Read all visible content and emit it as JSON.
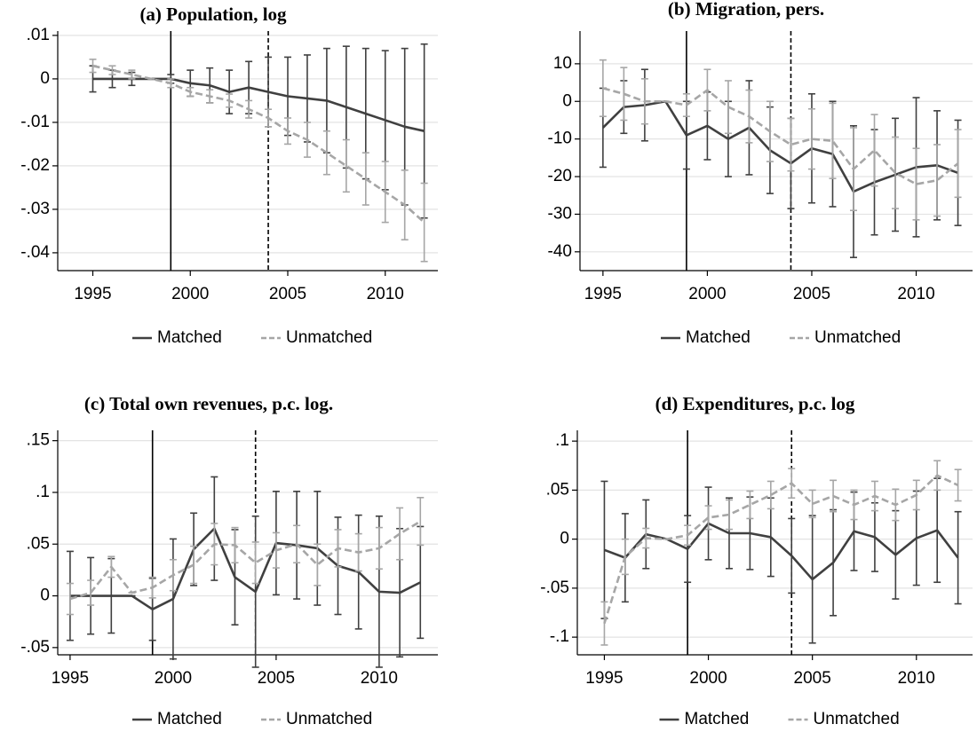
{
  "chart_data": [
    {
      "type": "line",
      "title": "(a) Population, log",
      "x": [
        1995,
        1996,
        1997,
        1998,
        1999,
        2000,
        2001,
        2002,
        2003,
        2004,
        2005,
        2006,
        2007,
        2008,
        2009,
        2010,
        2011,
        2012
      ],
      "xlim": [
        1993.2,
        2012.7
      ],
      "xticks": [
        1995,
        2000,
        2005,
        2010
      ],
      "ylim": [
        -0.0441,
        0.011
      ],
      "yticks": [
        {
          "value": 0.01,
          "label": ".01"
        },
        0,
        {
          "value": -0.01,
          "label": "-.01"
        },
        {
          "value": -0.02,
          "label": "-.02"
        },
        {
          "value": -0.03,
          "label": "-.03"
        },
        {
          "value": -0.04,
          "label": "-.04"
        }
      ],
      "grid": true,
      "vlines": [
        {
          "x": 1999,
          "dashed": false
        },
        {
          "x": 2004,
          "dashed": true
        }
      ],
      "series": [
        {
          "name": "Matched",
          "color": "#404040",
          "dashed": false,
          "values": [
            0,
            0,
            0,
            0,
            0,
            -0.001,
            -0.0015,
            -0.003,
            -0.002,
            -0.003,
            -0.004,
            -0.0045,
            -0.005,
            -0.0065,
            -0.008,
            -0.0095,
            -0.011,
            -0.012
          ],
          "errors": [
            0.003,
            0.002,
            0.0015,
            0,
            0.001,
            0.003,
            0.004,
            0.005,
            0.006,
            0.008,
            0.009,
            0.01,
            0.012,
            0.014,
            0.015,
            0.016,
            0.018,
            0.02
          ]
        },
        {
          "name": "Unmatched",
          "color": "#a6a6a6",
          "dashed": true,
          "values": [
            0.003,
            0.002,
            0.001,
            0,
            -0.001,
            -0.003,
            -0.004,
            -0.005,
            -0.007,
            -0.009,
            -0.012,
            -0.014,
            -0.017,
            -0.02,
            -0.023,
            -0.026,
            -0.029,
            -0.033
          ],
          "errors": [
            0.0015,
            0.001,
            0.001,
            0,
            0.001,
            0.001,
            0.0015,
            0.0015,
            0.002,
            0.002,
            0.003,
            0.004,
            0.005,
            0.006,
            0.006,
            0.007,
            0.008,
            0.009
          ]
        }
      ]
    },
    {
      "type": "line",
      "title": "(b) Migration, pers.",
      "x": [
        1995,
        1996,
        1997,
        1998,
        1999,
        2000,
        2001,
        2002,
        2003,
        2004,
        2005,
        2006,
        2007,
        2008,
        2009,
        2010,
        2011,
        2012
      ],
      "xlim": [
        1993.9,
        2012.7
      ],
      "xticks": [
        1995,
        2000,
        2005,
        2010
      ],
      "ylim": [
        -45,
        18.7
      ],
      "yticks": [
        10,
        0,
        -10,
        -20,
        -30,
        -40
      ],
      "grid": true,
      "vlines": [
        {
          "x": 1999,
          "dashed": false
        },
        {
          "x": 2004,
          "dashed": true
        }
      ],
      "series": [
        {
          "name": "Matched",
          "color": "#404040",
          "dashed": false,
          "values": [
            -7,
            -1.5,
            -1,
            0,
            -9,
            -6.5,
            -10,
            -7,
            -13,
            -16.5,
            -12.5,
            -14,
            -24,
            -21.5,
            -19.5,
            -17.5,
            -17,
            -19
          ],
          "errors": [
            10.5,
            7,
            9.5,
            0,
            9,
            9,
            10,
            12.5,
            11.5,
            12,
            14.5,
            14,
            17.5,
            14,
            15,
            18.5,
            14.5,
            14
          ]
        },
        {
          "name": "Unmatched",
          "color": "#a6a6a6",
          "dashed": true,
          "values": [
            3.5,
            2,
            0,
            0,
            -1,
            3,
            -1.5,
            -4,
            -8,
            -11.5,
            -10,
            -10.5,
            -18,
            -13,
            -19,
            -22,
            -21,
            -16.5
          ],
          "errors": [
            7.5,
            7,
            6,
            0,
            3,
            5.5,
            7,
            7,
            8,
            7,
            8,
            10,
            11,
            9.5,
            9.5,
            9.5,
            9.5,
            9
          ]
        }
      ]
    },
    {
      "type": "line",
      "title": "(c) Total own revenues, p.c. log.",
      "x": [
        1995,
        1996,
        1997,
        1998,
        1999,
        2000,
        2001,
        2002,
        2003,
        2004,
        2005,
        2006,
        2007,
        2008,
        2009,
        2010,
        2011,
        2012
      ],
      "xlim": [
        1994.4,
        2012.85
      ],
      "xticks": [
        1995,
        2000,
        2005,
        2010
      ],
      "ylim": [
        -0.057,
        0.16
      ],
      "yticks": [
        {
          "value": 0.15,
          "label": ".15"
        },
        {
          "value": 0.1,
          "label": ".1"
        },
        {
          "value": 0.05,
          "label": ".05"
        },
        0,
        {
          "value": -0.05,
          "label": "-.05"
        }
      ],
      "grid": true,
      "vlines": [
        {
          "x": 1999,
          "dashed": false
        },
        {
          "x": 2004,
          "dashed": true
        }
      ],
      "series": [
        {
          "name": "Matched",
          "color": "#404040",
          "dashed": false,
          "values": [
            0,
            0,
            0,
            0,
            -0.013,
            -0.003,
            0.045,
            0.065,
            0.018,
            0.004,
            0.051,
            0.049,
            0.046,
            0.029,
            0.023,
            0.004,
            0.003,
            0.013
          ],
          "errors": [
            0.043,
            0.037,
            0.036,
            0,
            0.03,
            0.058,
            0.035,
            0.05,
            0.046,
            0.073,
            0.05,
            0.052,
            0.055,
            0.047,
            0.055,
            0.073,
            0.062,
            0.054
          ]
        },
        {
          "name": "Unmatched",
          "color": "#a6a6a6",
          "dashed": true,
          "values": [
            -0.003,
            0.003,
            0.028,
            0.003,
            0.008,
            0.02,
            0.03,
            0.05,
            0.049,
            0.032,
            0.044,
            0.05,
            0.03,
            0.046,
            0.042,
            0.046,
            0.06,
            0.072
          ],
          "errors": [
            0.015,
            0.012,
            0.01,
            0,
            0.01,
            0.015,
            0.018,
            0.02,
            0.017,
            0.02,
            0.017,
            0.018,
            0.02,
            0.018,
            0.018,
            0.02,
            0.025,
            0.023
          ]
        }
      ]
    },
    {
      "type": "line",
      "title": "(d) Expenditures, p.c. log",
      "x": [
        1995,
        1996,
        1997,
        1998,
        1999,
        2000,
        2001,
        2002,
        2003,
        2004,
        2005,
        2006,
        2007,
        2008,
        2009,
        2010,
        2011,
        2012
      ],
      "xlim": [
        1993.7,
        2012.7
      ],
      "xticks": [
        1995,
        2000,
        2005,
        2010
      ],
      "ylim": [
        -0.118,
        0.111
      ],
      "yticks": [
        {
          "value": 0.1,
          "label": ".1"
        },
        {
          "value": 0.05,
          "label": ".05"
        },
        0,
        {
          "value": -0.05,
          "label": "-.05"
        },
        {
          "value": -0.1,
          "label": "-.1"
        }
      ],
      "grid": true,
      "vlines": [
        {
          "x": 1999,
          "dashed": false
        },
        {
          "x": 2004,
          "dashed": true
        }
      ],
      "series": [
        {
          "name": "Matched",
          "color": "#404040",
          "dashed": false,
          "values": [
            -0.011,
            -0.019,
            0.005,
            0,
            -0.01,
            0.016,
            0.006,
            0.006,
            0.002,
            -0.017,
            -0.041,
            -0.024,
            0.008,
            0.002,
            -0.016,
            0.001,
            0.009,
            -0.019
          ],
          "errors": [
            0.07,
            0.045,
            0.035,
            0,
            0.034,
            0.037,
            0.036,
            0.037,
            0.04,
            0.038,
            0.065,
            0.054,
            0.04,
            0.035,
            0.045,
            0.048,
            0.053,
            0.047
          ]
        },
        {
          "name": "Unmatched",
          "color": "#a6a6a6",
          "dashed": true,
          "values": [
            -0.086,
            -0.018,
            0.001,
            0,
            0.004,
            0.022,
            0.025,
            0.035,
            0.045,
            0.057,
            0.036,
            0.044,
            0.035,
            0.044,
            0.035,
            0.045,
            0.065,
            0.055
          ],
          "errors": [
            0.022,
            0.018,
            0.01,
            0,
            0.01,
            0.012,
            0.015,
            0.014,
            0.014,
            0.015,
            0.014,
            0.016,
            0.015,
            0.015,
            0.016,
            0.015,
            0.015,
            0.016
          ]
        }
      ]
    }
  ]
}
